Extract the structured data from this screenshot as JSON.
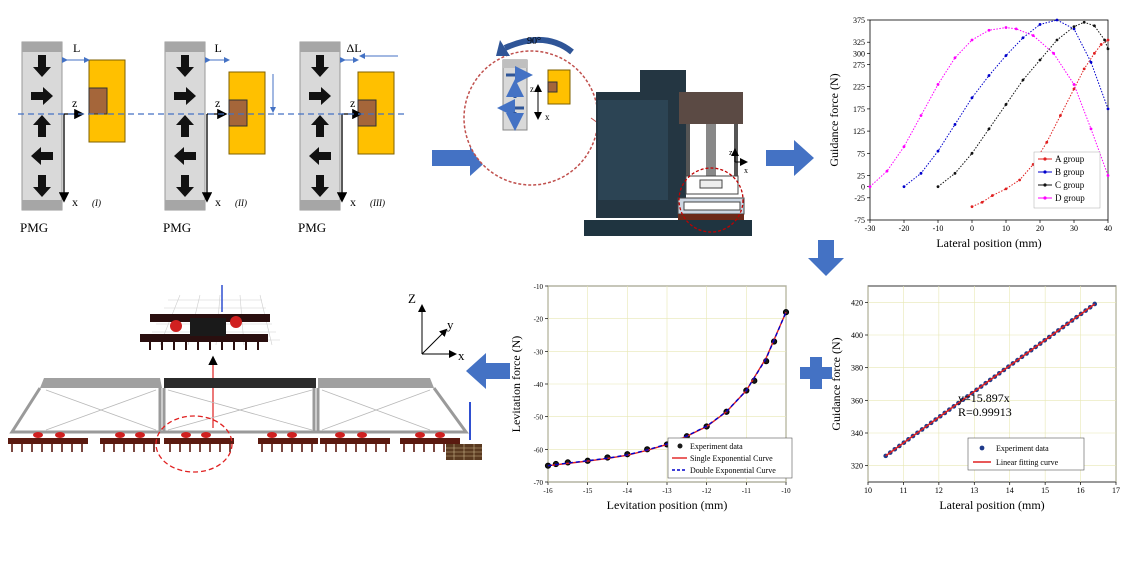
{
  "pmg_label": "PMG",
  "panels": [
    {
      "stage": "(I)",
      "gap_label": "L",
      "z_label": "z",
      "x_label": "x"
    },
    {
      "stage": "(II)",
      "gap_label": "L",
      "z_label": "z",
      "x_label": "x"
    },
    {
      "stage": "(III)",
      "gap_label": "ΔL",
      "z_label": "z",
      "x_label": "x"
    }
  ],
  "rotation_label": "90°",
  "inset_axes": {
    "z": "z",
    "x": "x"
  },
  "machine_axes": {
    "z": "z",
    "x": "x"
  },
  "vehicle_axes": {
    "z": "Z",
    "y": "y",
    "x": "x"
  },
  "colors": {
    "arrow_blue": "#4472c4",
    "yoke": "#ffc000",
    "core": "#a5663a",
    "machine": "#243642",
    "red": "#e02020",
    "blue": "#0000cc",
    "black": "#111111",
    "magenta": "#ff00ff",
    "grid": "#e8e8b4"
  },
  "chart_data": [
    {
      "type": "line",
      "xlabel": "Lateral position (mm)",
      "ylabel": "Guidance force (N)",
      "xlim": [
        -30,
        40
      ],
      "ylim": [
        -75,
        375
      ],
      "x_ticks": [
        -30,
        -20,
        -10,
        0,
        10,
        20,
        30,
        40
      ],
      "y_ticks": [
        -75,
        -25,
        0,
        25,
        75,
        125,
        175,
        225,
        275,
        300,
        325,
        375
      ],
      "series": [
        {
          "name": "A group",
          "x": [
            0,
            3,
            6,
            10,
            14,
            18,
            22,
            26,
            30,
            33,
            36,
            38,
            40
          ],
          "y": [
            -45,
            -35,
            -20,
            -5,
            15,
            50,
            100,
            160,
            220,
            265,
            300,
            320,
            330
          ]
        },
        {
          "name": "B group",
          "x": [
            -20,
            -15,
            -10,
            -5,
            0,
            5,
            10,
            15,
            20,
            25,
            30,
            35,
            40
          ],
          "y": [
            0,
            30,
            80,
            140,
            200,
            250,
            295,
            335,
            365,
            375,
            355,
            280,
            175
          ]
        },
        {
          "name": "C group",
          "x": [
            -10,
            -5,
            0,
            5,
            10,
            15,
            20,
            25,
            30,
            33,
            36,
            39,
            40
          ],
          "y": [
            0,
            30,
            75,
            130,
            185,
            240,
            285,
            330,
            360,
            370,
            362,
            330,
            310
          ]
        },
        {
          "name": "D group",
          "x": [
            -30,
            -25,
            -20,
            -15,
            -10,
            -5,
            0,
            5,
            10,
            13,
            18,
            24,
            30,
            35,
            40
          ],
          "y": [
            0,
            35,
            90,
            160,
            230,
            290,
            330,
            352,
            358,
            355,
            340,
            300,
            230,
            130,
            25
          ]
        }
      ]
    },
    {
      "type": "scatter",
      "xlabel": "Levitation position (mm)",
      "ylabel": "Levitation force (N)",
      "xlim": [
        -16,
        -10
      ],
      "ylim": [
        -70,
        -10
      ],
      "x_ticks": [
        -16,
        -15,
        -14,
        -13,
        -12,
        -11,
        -10
      ],
      "y_ticks": [
        -70,
        -60,
        -50,
        -40,
        -30,
        -20,
        -10
      ],
      "series": [
        {
          "name": "Experiment data",
          "x": [
            -16,
            -15.8,
            -15.5,
            -15,
            -14.5,
            -14,
            -13.5,
            -13,
            -12.5,
            -12,
            -11.5,
            -11,
            -10.8,
            -10.5,
            -10.3,
            -10
          ],
          "y": [
            -65,
            -64.5,
            -64,
            -63.5,
            -62.5,
            -61.5,
            -60,
            -58.5,
            -56,
            -53,
            -48.5,
            -42,
            -39,
            -33,
            -27,
            -18
          ]
        },
        {
          "name": "Single Exponential  Curve",
          "x": [
            -16,
            -15.5,
            -15,
            -14.5,
            -14,
            -13.5,
            -13,
            -12.5,
            -12,
            -11.5,
            -11,
            -10.5,
            -10
          ],
          "y": [
            -65,
            -64.3,
            -63.6,
            -62.8,
            -61.8,
            -60.3,
            -58.5,
            -56,
            -53,
            -48.5,
            -42,
            -32,
            -18
          ]
        },
        {
          "name": "Double Exponential Curve",
          "x": [
            -16,
            -15.5,
            -15,
            -14.5,
            -14,
            -13.5,
            -13,
            -12.5,
            -12,
            -11.5,
            -11,
            -10.5,
            -10
          ],
          "y": [
            -65,
            -64.2,
            -63.5,
            -62.7,
            -61.7,
            -60.2,
            -58.4,
            -55.9,
            -52.9,
            -48.4,
            -42,
            -32.2,
            -18
          ]
        }
      ]
    },
    {
      "type": "scatter",
      "xlabel": "Lateral position (mm)",
      "ylabel": "Guidance force (N)",
      "xlim": [
        10,
        17
      ],
      "ylim": [
        310,
        430
      ],
      "x_ticks": [
        10,
        11,
        12,
        13,
        14,
        15,
        16,
        17
      ],
      "y_ticks": [
        320,
        340,
        360,
        380,
        400,
        420
      ],
      "annotation": {
        "fit": "y=15.897x",
        "r": "R=0.99913"
      },
      "series": [
        {
          "name": "Experiment data",
          "x": [
            10.5,
            16.4
          ],
          "y": [
            326,
            419
          ]
        },
        {
          "name": "Linear fitting curve",
          "x": [
            10.5,
            16.4
          ],
          "y": [
            326,
            419
          ]
        }
      ]
    }
  ]
}
